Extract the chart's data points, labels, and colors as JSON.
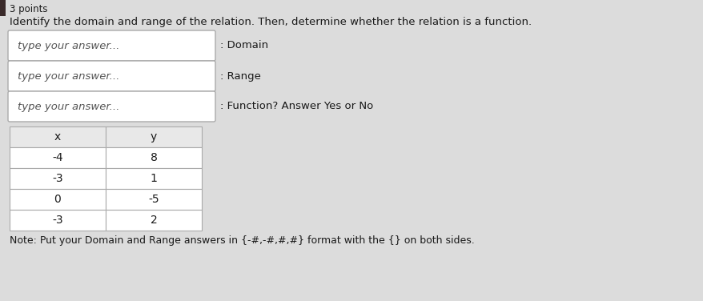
{
  "title_points": "3 points",
  "main_question": "Identify the domain and range of the relation. Then, determine whether the relation is a function.",
  "input_boxes": [
    {
      "label": ": Domain",
      "placeholder": "type your answer..."
    },
    {
      "label": ": Range",
      "placeholder": "type your answer..."
    },
    {
      "label": ": Function? Answer Yes or No",
      "placeholder": "type your answer..."
    }
  ],
  "table_headers": [
    "x",
    "y"
  ],
  "table_data": [
    [
      "-4",
      "8"
    ],
    [
      "-3",
      "1"
    ],
    [
      "0",
      "-5"
    ],
    [
      "-3",
      "2"
    ]
  ],
  "note": "Note: Put your Domain and Range answers in {-#,-#,#,#} format with the {} on both sides.",
  "bg_color": "#dcdcdc",
  "box_bg_color": "#ffffff",
  "box_border_color": "#aaaaaa",
  "table_header_bg": "#e8e8e8",
  "table_bg": "#ffffff",
  "text_color": "#1a1a1a",
  "placeholder_color": "#555555",
  "font_size_title": 8.5,
  "font_size_main": 9.5,
  "font_size_box": 9.5,
  "font_size_table": 10,
  "font_size_note": 9
}
